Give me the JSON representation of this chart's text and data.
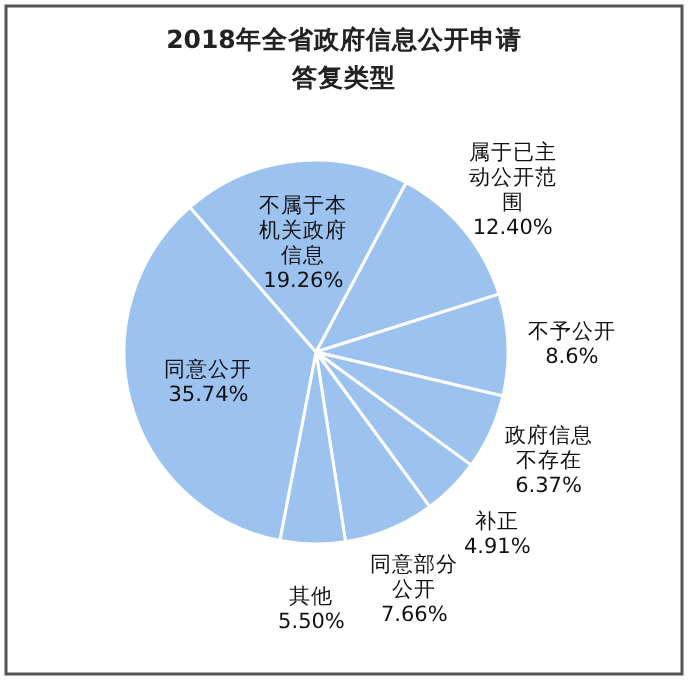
{
  "chart_data": {
    "type": "pie",
    "title": "2018年全省政府信息公开申请答复类型",
    "categories": [
      "属于已主动公开范围",
      "不予公开",
      "政府信息不存在",
      "补正",
      "同意部分公开",
      "其他",
      "同意公开",
      "不属于本机关政府信息"
    ],
    "values": [
      12.4,
      8.6,
      6.37,
      4.91,
      7.66,
      5.5,
      35.74,
      19.26
    ],
    "value_labels": [
      "12.40%",
      "8.6%",
      "6.37%",
      "4.91%",
      "7.66%",
      "5.50%",
      "35.74%",
      "19.26%"
    ],
    "colors": [
      "#9cc2f0",
      "#9cc2f0",
      "#9cc2f0",
      "#9cc2f0",
      "#9cc2f0",
      "#9cc2f0",
      "#9cc2f0",
      "#9cc2f0"
    ],
    "legend": false
  }
}
